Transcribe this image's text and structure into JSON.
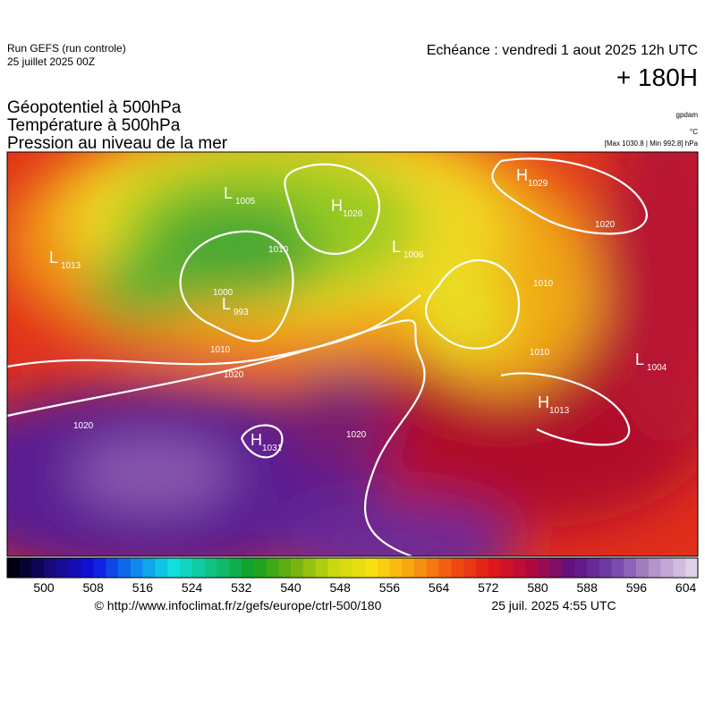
{
  "header": {
    "run": "Run GEFS (run controle)",
    "date": "25 juillet 2025 00Z",
    "echeance": "Echéance : vendredi 1 aout 2025 12h UTC",
    "lead": "+ 180H"
  },
  "fields": [
    "Géopotentiel à 500hPa",
    "Température à 500hPa",
    "Pression au niveau de la mer"
  ],
  "units": [
    "gpdam",
    "°C",
    "[Max 1030.8 | Min 992.8] hPa"
  ],
  "centers": [
    {
      "type": "L",
      "value": 1005
    },
    {
      "type": "H",
      "value": 1026
    },
    {
      "type": "L",
      "value": 1006
    },
    {
      "type": "L",
      "value": 1013
    },
    {
      "type": "L",
      "value": 993
    },
    {
      "type": "H",
      "value": 1029
    },
    {
      "type": "L",
      "value": 1004
    },
    {
      "type": "H",
      "value": 1013
    },
    {
      "type": "H",
      "value": 1031
    }
  ],
  "isobar_labels": [
    1020,
    1010,
    1020,
    1020,
    1020,
    1010,
    1010,
    1000,
    1010
  ],
  "colorbar_ticks": [
    500,
    508,
    516,
    524,
    532,
    540,
    548,
    556,
    564,
    572,
    580,
    588,
    596,
    604
  ],
  "footer": {
    "source": "© http://www.infoclimat.fr/z/gefs/europe/ctrl-500/180",
    "time": "25 juil. 2025  4:55 UTC"
  }
}
